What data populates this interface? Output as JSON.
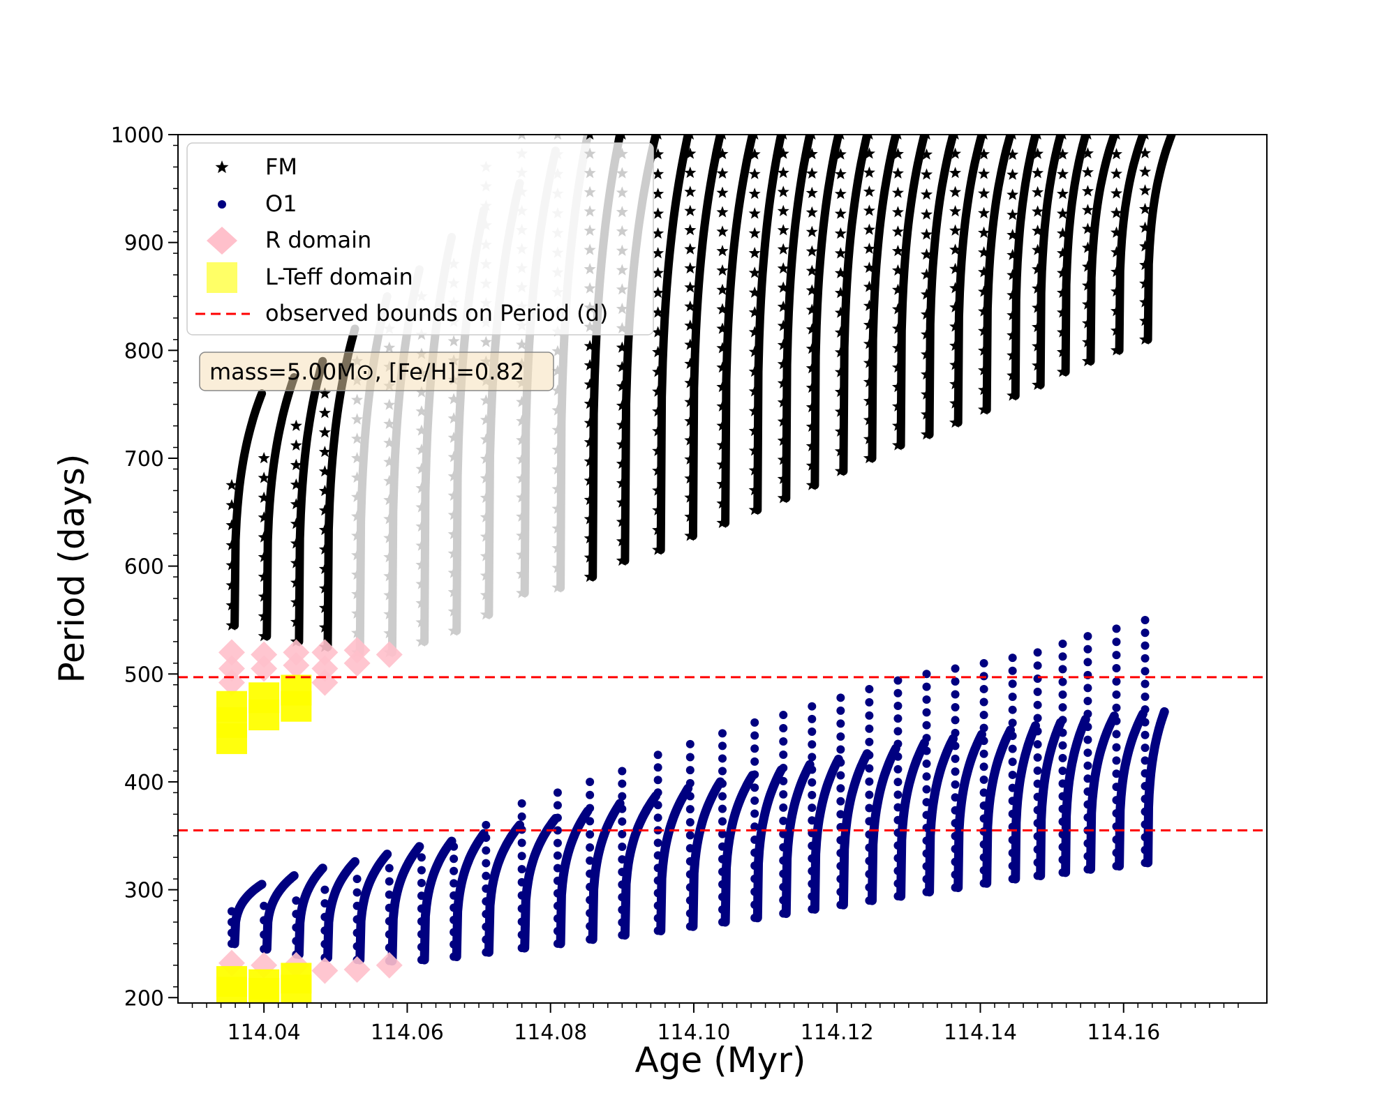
{
  "chart_data": {
    "type": "scatter",
    "xlabel": "Age (Myr)",
    "ylabel": "Period (days)",
    "xlim": [
      114.028,
      114.18
    ],
    "ylim": [
      195,
      1000
    ],
    "x_ticks": [
      114.04,
      114.06,
      114.08,
      114.1,
      114.12,
      114.14,
      114.16
    ],
    "x_tick_labels": [
      "114.04",
      "114.06",
      "114.08",
      "114.10",
      "114.12",
      "114.14",
      "114.16"
    ],
    "y_ticks": [
      200,
      300,
      400,
      500,
      600,
      700,
      800,
      900,
      1000
    ],
    "y_tick_labels": [
      "200",
      "300",
      "400",
      "500",
      "600",
      "700",
      "800",
      "900",
      "1000"
    ],
    "grid": false,
    "legend_position": "top-left",
    "annotation": "mass=5.00M⊙, [Fe/H]=0.82",
    "series": [
      {
        "name": "FM",
        "marker": "star",
        "color": "#000000",
        "pulse_ages": [
          114.0355,
          114.04,
          114.0445,
          114.0485,
          114.053,
          114.0575,
          114.062,
          114.0665,
          114.071,
          114.076,
          114.081,
          114.0855,
          114.09,
          114.095,
          114.0995,
          114.104,
          114.1085,
          114.1125,
          114.1165,
          114.1205,
          114.1245,
          114.1285,
          114.1325,
          114.1365,
          114.1405,
          114.1445,
          114.148,
          114.1515,
          114.155,
          114.159,
          114.163
        ],
        "cycle_min": [
          545,
          535,
          530,
          525,
          520,
          520,
          530,
          540,
          555,
          575,
          580,
          590,
          605,
          615,
          628,
          640,
          652,
          663,
          675,
          688,
          700,
          712,
          722,
          733,
          745,
          758,
          768,
          780,
          790,
          800,
          810
        ],
        "cycle_max": [
          760,
          775,
          790,
          820,
          850,
          875,
          905,
          930,
          955,
          985,
          1000,
          1000,
          1000,
          1000,
          1000,
          1000,
          1000,
          1000,
          1000,
          1000,
          1000,
          1000,
          1000,
          1000,
          1000,
          1000,
          1000,
          1000,
          1000,
          1000,
          1000
        ],
        "spike_max": [
          675,
          700,
          730,
          760,
          790,
          820,
          850,
          880,
          970,
          1000,
          1000,
          1000,
          1000,
          1000,
          1000,
          1000,
          1000,
          1000,
          1000,
          1000,
          1000,
          1000,
          1000,
          1000,
          1000,
          1000,
          1000,
          1000,
          1000,
          1000,
          1000
        ],
        "faded_cycles": [
          4,
          5,
          6,
          7,
          8,
          9,
          10
        ]
      },
      {
        "name": "O1",
        "marker": "circle",
        "color": "#000080",
        "pulse_ages": [
          114.0355,
          114.04,
          114.0445,
          114.0485,
          114.053,
          114.0575,
          114.062,
          114.0665,
          114.071,
          114.076,
          114.081,
          114.0855,
          114.09,
          114.095,
          114.0995,
          114.104,
          114.1085,
          114.1125,
          114.1165,
          114.1205,
          114.1245,
          114.1285,
          114.1325,
          114.1365,
          114.1405,
          114.1445,
          114.148,
          114.1515,
          114.155,
          114.159,
          114.163
        ],
        "cycle_min": [
          250,
          245,
          240,
          237,
          235,
          234,
          235,
          238,
          242,
          246,
          250,
          254,
          258,
          262,
          266,
          270,
          274,
          278,
          282,
          286,
          290,
          294,
          298,
          302,
          306,
          310,
          313,
          316,
          319,
          322,
          325
        ],
        "cycle_max": [
          305,
          313,
          320,
          326,
          333,
          340,
          345,
          352,
          360,
          366,
          373,
          380,
          387,
          394,
          400,
          406,
          411,
          416,
          421,
          426,
          431,
          436,
          440,
          444,
          448,
          452,
          455,
          458,
          461,
          463,
          465
        ],
        "spike_max": [
          280,
          285,
          290,
          300,
          310,
          320,
          330,
          340,
          360,
          380,
          390,
          400,
          410,
          425,
          435,
          445,
          455,
          462,
          470,
          478,
          486,
          494,
          500,
          505,
          510,
          515,
          520,
          528,
          535,
          542,
          550
        ],
        "final_age": 114.166
      },
      {
        "name": "R domain",
        "marker": "diamond",
        "color": "#ffc0cb",
        "points": [
          [
            114.0355,
            520
          ],
          [
            114.0355,
            505
          ],
          [
            114.0355,
            492
          ],
          [
            114.04,
            518
          ],
          [
            114.04,
            505
          ],
          [
            114.0445,
            520
          ],
          [
            114.0445,
            508
          ],
          [
            114.0485,
            520
          ],
          [
            114.0485,
            505
          ],
          [
            114.0485,
            492
          ],
          [
            114.053,
            522
          ],
          [
            114.053,
            510
          ],
          [
            114.0575,
            518
          ],
          [
            114.0355,
            232
          ],
          [
            114.04,
            230
          ],
          [
            114.0445,
            230
          ],
          [
            114.0485,
            225
          ],
          [
            114.053,
            226
          ],
          [
            114.0575,
            230
          ]
        ]
      },
      {
        "name": "L-Teff domain",
        "marker": "square",
        "color": "#ffff00",
        "points": [
          [
            114.0355,
            470
          ],
          [
            114.0355,
            455
          ],
          [
            114.0355,
            440
          ],
          [
            114.04,
            478
          ],
          [
            114.04,
            462
          ],
          [
            114.0445,
            485
          ],
          [
            114.0445,
            470
          ],
          [
            114.0355,
            215
          ],
          [
            114.0355,
            205
          ],
          [
            114.04,
            212
          ],
          [
            114.04,
            204
          ],
          [
            114.0445,
            218
          ],
          [
            114.0445,
            207
          ]
        ]
      },
      {
        "name": "observed bounds on Period (d)",
        "marker": "dashed-line",
        "color": "#ff0000",
        "values": [
          497,
          355
        ]
      }
    ]
  }
}
